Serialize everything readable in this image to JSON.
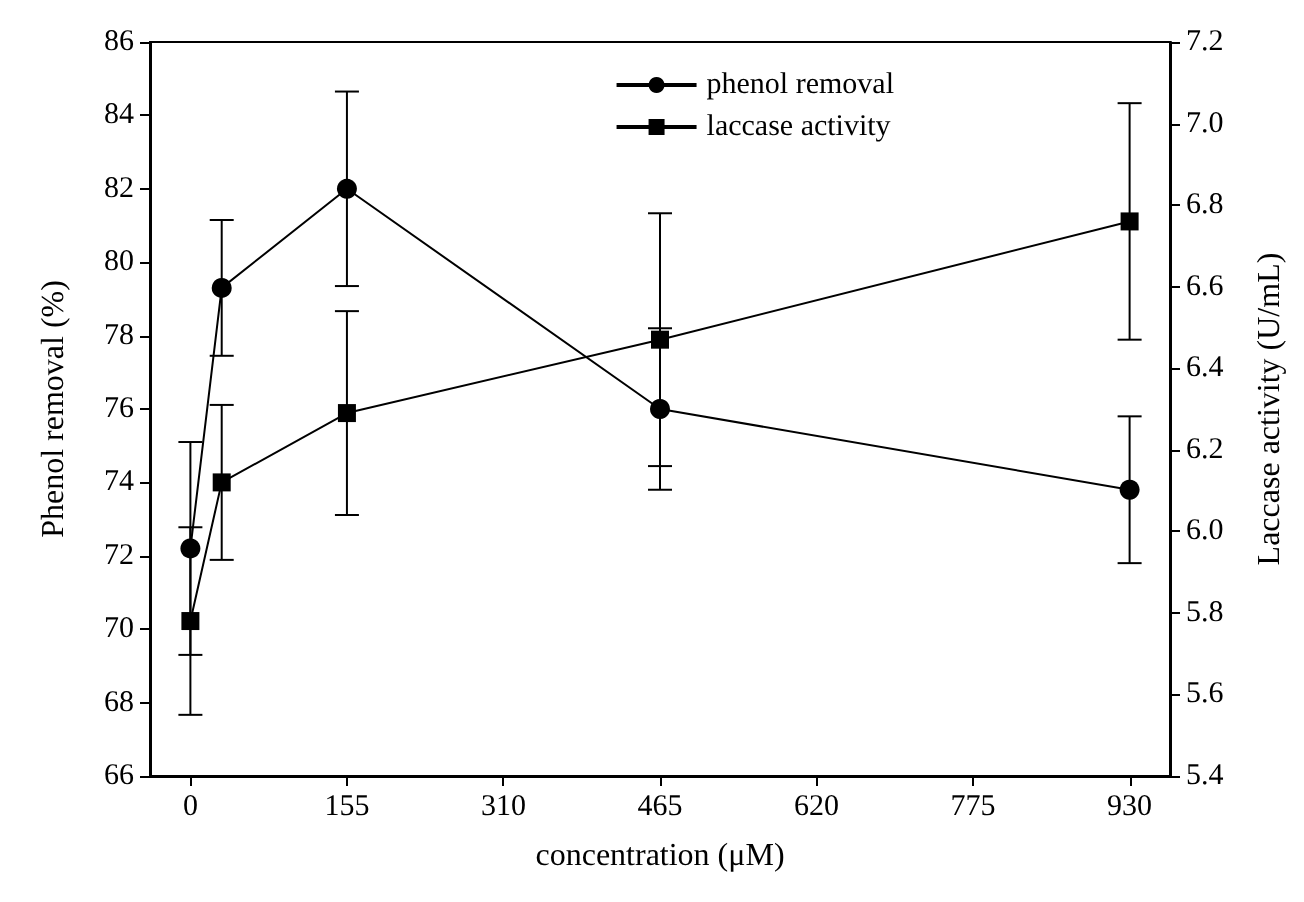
{
  "chart_data": {
    "type": "line",
    "xlabel": "concentration (μM)",
    "ylabel": "Phenol removal (%)",
    "y2label": "Laccase activity (U/mL)",
    "x": [
      0,
      31,
      155,
      465,
      930
    ],
    "series": [
      {
        "name": "phenol removal",
        "color": "#000000",
        "marker": "circle",
        "values": [
          72.2,
          79.3,
          82.0,
          76.0,
          73.8
        ],
        "errors": [
          2.9,
          1.85,
          2.65,
          2.2,
          2.0
        ]
      },
      {
        "name": "laccase activity",
        "color": "#000000",
        "marker": "square",
        "axis": "y2",
        "values": [
          5.78,
          6.12,
          6.29,
          6.47,
          6.76
        ],
        "errors": [
          0.23,
          0.19,
          0.25,
          0.31,
          0.29
        ]
      }
    ],
    "xlim": [
      -40,
      970
    ],
    "xticks": [
      0,
      155,
      310,
      465,
      620,
      775,
      930
    ],
    "ylim": [
      66,
      86
    ],
    "yticks": [
      66,
      68,
      70,
      72,
      74,
      76,
      78,
      80,
      82,
      84,
      86
    ],
    "y2lim": [
      5.4,
      7.2
    ],
    "y2ticks": [
      {
        "value": 5.4,
        "label": "5.4"
      },
      {
        "value": 5.6,
        "label": "5.6"
      },
      {
        "value": 5.8,
        "label": "5.8"
      },
      {
        "value": 6.0,
        "label": "6.0"
      },
      {
        "value": 6.2,
        "label": "6.2"
      },
      {
        "value": 6.4,
        "label": "6.4"
      },
      {
        "value": 6.6,
        "label": "6.6"
      },
      {
        "value": 6.8,
        "label": "6.8"
      },
      {
        "value": 7.0,
        "label": "7.0"
      },
      {
        "value": 7.2,
        "label": "7.2"
      }
    ],
    "legend": "top right",
    "grid": false,
    "line_style": "solid"
  }
}
